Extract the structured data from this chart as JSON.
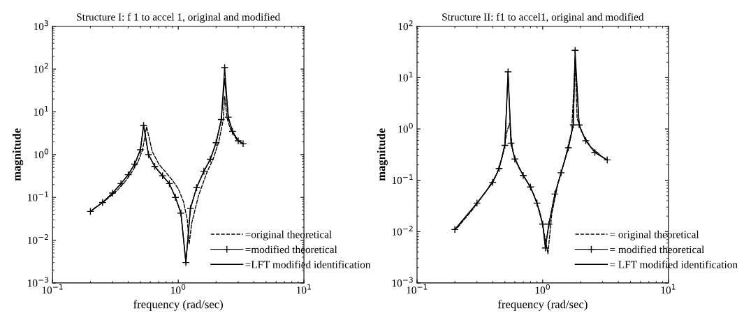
{
  "chart_data": [
    {
      "type": "line",
      "title": "Structure I: f 1 to accel 1, original and modified",
      "xlabel": "frequency (rad/sec)",
      "ylabel": "magnitude",
      "log": "xy",
      "xlim": [
        0.1,
        10
      ],
      "ylim": [
        0.001,
        1000
      ],
      "xticks": [
        {
          "value": 0.1,
          "label": "10$^{−1}$"
        },
        {
          "value": 1,
          "label": "10$^{0}$"
        },
        {
          "value": 10,
          "label": "10$^{1}$"
        }
      ],
      "yticks": [
        {
          "value": 0.001,
          "label": "10$^{−3}$"
        },
        {
          "value": 0.01,
          "label": "10$^{−2}$"
        },
        {
          "value": 0.1,
          "label": "10$^{−1}$"
        },
        {
          "value": 1,
          "label": "10$^{0}$"
        },
        {
          "value": 10,
          "label": "10$^{1}$"
        },
        {
          "value": 100,
          "label": "10$^{2}$"
        },
        {
          "value": 1000,
          "label": "10$^{3}$"
        }
      ],
      "grid": false,
      "legend": "bottom right",
      "series": [
        {
          "name": "=original theoretical",
          "color": "#000000",
          "line_style": "dashed",
          "marker": "none",
          "x": [
            0.21,
            0.27,
            0.33,
            0.38,
            0.43,
            0.48,
            0.52,
            0.56,
            0.62,
            0.7,
            0.8,
            0.9,
            1.0,
            1.1,
            1.18,
            1.22,
            1.28,
            1.45,
            1.7,
            1.9,
            2.1,
            2.28,
            2.34,
            2.45,
            2.6,
            2.9,
            3.26
          ],
          "values": [
            0.053,
            0.09,
            0.15,
            0.24,
            0.4,
            0.7,
            1.3,
            4.5,
            1.2,
            0.6,
            0.38,
            0.25,
            0.16,
            0.08,
            0.03,
            0.008,
            0.025,
            0.11,
            0.4,
            0.8,
            2.0,
            6.5,
            23,
            7,
            4.0,
            2.3,
            1.8
          ]
        },
        {
          "name": "=modified theoretical",
          "color": "#000000",
          "line_style": "solid",
          "marker": "cross",
          "x": [
            0.2,
            0.25,
            0.3,
            0.35,
            0.4,
            0.45,
            0.5,
            0.53,
            0.58,
            0.65,
            0.75,
            0.85,
            0.95,
            1.05,
            1.15,
            1.25,
            1.4,
            1.6,
            1.8,
            2.0,
            2.2,
            2.34,
            2.5,
            2.7,
            3.0,
            3.28
          ],
          "values": [
            0.047,
            0.076,
            0.126,
            0.21,
            0.34,
            0.6,
            1.3,
            4.8,
            1.0,
            0.53,
            0.32,
            0.21,
            0.1,
            0.043,
            0.003,
            0.055,
            0.17,
            0.41,
            0.78,
            1.9,
            6.6,
            108,
            7.5,
            3.5,
            2.1,
            1.8
          ]
        },
        {
          "name": "=LFT modified identification",
          "color": "#000000",
          "line_style": "solid",
          "marker": "none",
          "x": [
            0.2,
            0.25,
            0.3,
            0.35,
            0.4,
            0.45,
            0.5,
            0.53,
            0.58,
            0.65,
            0.75,
            0.85,
            0.95,
            1.05,
            1.15,
            1.25,
            1.4,
            1.6,
            1.8,
            2.0,
            2.2,
            2.34,
            2.5,
            2.7,
            3.0,
            3.28
          ],
          "values": [
            0.047,
            0.076,
            0.126,
            0.21,
            0.34,
            0.6,
            1.3,
            5.0,
            1.0,
            0.53,
            0.32,
            0.21,
            0.1,
            0.043,
            0.003,
            0.055,
            0.17,
            0.41,
            0.78,
            1.9,
            6.6,
            60,
            7.5,
            3.5,
            2.1,
            1.8
          ]
        }
      ]
    },
    {
      "type": "line",
      "title": "Structure II: f1 to accel1, original and modified",
      "xlabel": "frequency (rad/sec)",
      "ylabel": "magnitude",
      "log": "xy",
      "xlim": [
        0.1,
        10
      ],
      "ylim": [
        0.001,
        100
      ],
      "xticks": [
        {
          "value": 0.1,
          "label": "10$^{−1}$"
        },
        {
          "value": 1,
          "label": "10$^{0}$"
        },
        {
          "value": 10,
          "label": "10$^{1}$"
        }
      ],
      "yticks": [
        {
          "value": 0.001,
          "label": "10$^{−3}$"
        },
        {
          "value": 0.01,
          "label": "10$^{−2}$"
        },
        {
          "value": 0.1,
          "label": "10$^{−1}$"
        },
        {
          "value": 1,
          "label": "10$^{0}$"
        },
        {
          "value": 10,
          "label": "10$^{1}$"
        },
        {
          "value": 100,
          "label": "10$^{2}$"
        }
      ],
      "grid": false,
      "legend": "bottom right",
      "series": [
        {
          "name": "= original theoretical",
          "color": "#000000",
          "line_style": "dashed",
          "marker": "none",
          "x": [
            0.21,
            0.27,
            0.35,
            0.43,
            0.48,
            0.52,
            0.545,
            0.58,
            0.65,
            0.75,
            0.85,
            0.95,
            1.03,
            1.1,
            1.18,
            1.32,
            1.5,
            1.7,
            1.81,
            1.88,
            2.05,
            2.4,
            3.0,
            3.24
          ],
          "values": [
            0.012,
            0.025,
            0.058,
            0.13,
            0.3,
            0.9,
            1.3,
            0.35,
            0.17,
            0.095,
            0.053,
            0.024,
            0.009,
            0.0037,
            0.022,
            0.085,
            0.25,
            0.9,
            20,
            1.6,
            0.85,
            0.45,
            0.28,
            0.25
          ]
        },
        {
          "name": "= modified theoretical",
          "color": "#000000",
          "line_style": "solid",
          "marker": "cross",
          "x": [
            0.2,
            0.3,
            0.4,
            0.45,
            0.5,
            0.53,
            0.56,
            0.6,
            0.7,
            0.8,
            0.9,
            1.0,
            1.05,
            1.12,
            1.25,
            1.4,
            1.6,
            1.75,
            1.81,
            1.95,
            2.2,
            2.6,
            3.26
          ],
          "values": [
            0.011,
            0.036,
            0.091,
            0.17,
            0.48,
            13,
            0.53,
            0.26,
            0.124,
            0.074,
            0.036,
            0.014,
            0.0048,
            0.014,
            0.054,
            0.14,
            0.43,
            1.2,
            34,
            1.2,
            0.59,
            0.35,
            0.25
          ]
        },
        {
          "name": "= LFT modified identification",
          "color": "#000000",
          "line_style": "solid",
          "marker": "none",
          "x": [
            0.2,
            0.3,
            0.4,
            0.45,
            0.5,
            0.53,
            0.56,
            0.6,
            0.7,
            0.8,
            0.9,
            1.0,
            1.05,
            1.12,
            1.25,
            1.4,
            1.6,
            1.75,
            1.81,
            1.95,
            2.2,
            2.6,
            3.26
          ],
          "values": [
            0.011,
            0.036,
            0.091,
            0.17,
            0.48,
            12,
            0.53,
            0.26,
            0.124,
            0.074,
            0.036,
            0.014,
            0.005,
            0.014,
            0.054,
            0.14,
            0.43,
            1.2,
            25,
            1.2,
            0.59,
            0.35,
            0.25
          ]
        }
      ]
    }
  ]
}
